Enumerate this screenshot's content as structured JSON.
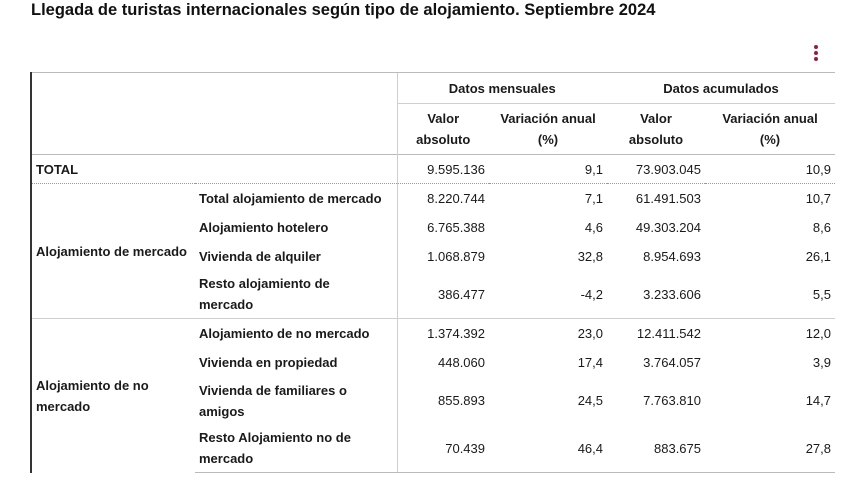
{
  "title": "Llegada de turistas internacionales según tipo de alojamiento. Septiembre 2024",
  "menu_icon": "kebab-menu-icon",
  "accent_color": "#9b1c3b",
  "headers": {
    "group_monthly": "Datos mensuales",
    "group_accumulated": "Datos acumulados",
    "col_value_line1": "Valor",
    "col_value_line2": "absoluto",
    "col_var_line1": "Variación anual",
    "col_var_line2": "(%)"
  },
  "total": {
    "label": "TOTAL",
    "monthly_value": "9.595.136",
    "monthly_var": "9,1",
    "acc_value": "73.903.045",
    "acc_var": "10,9"
  },
  "groups": [
    {
      "label": "Alojamiento de mercado",
      "rows": [
        {
          "label": "Total alojamiento de mercado",
          "monthly_value": "8.220.744",
          "monthly_var": "7,1",
          "acc_value": "61.491.503",
          "acc_var": "10,7"
        },
        {
          "label": "Alojamiento hotelero",
          "monthly_value": "6.765.388",
          "monthly_var": "4,6",
          "acc_value": "49.303.204",
          "acc_var": "8,6"
        },
        {
          "label": "Vivienda de alquiler",
          "monthly_value": "1.068.879",
          "monthly_var": "32,8",
          "acc_value": "8.954.693",
          "acc_var": "26,1"
        },
        {
          "label_line1": "Resto alojamiento de",
          "label_line2": "mercado",
          "monthly_value": "386.477",
          "monthly_var": "-4,2",
          "acc_value": "3.233.606",
          "acc_var": "5,5"
        }
      ]
    },
    {
      "label_line1": "Alojamiento de no",
      "label_line2": "mercado",
      "rows": [
        {
          "label": "Alojamiento de no mercado",
          "monthly_value": "1.374.392",
          "monthly_var": "23,0",
          "acc_value": "12.411.542",
          "acc_var": "12,0"
        },
        {
          "label": "Vivienda en propiedad",
          "monthly_value": "448.060",
          "monthly_var": "17,4",
          "acc_value": "3.764.057",
          "acc_var": "3,9"
        },
        {
          "label_line1": "Vivienda de familiares o",
          "label_line2": "amigos",
          "monthly_value": "855.893",
          "monthly_var": "24,5",
          "acc_value": "7.763.810",
          "acc_var": "14,7"
        },
        {
          "label_line1": "Resto Alojamiento no de",
          "label_line2": "mercado",
          "monthly_value": "70.439",
          "monthly_var": "46,4",
          "acc_value": "883.675",
          "acc_var": "27,8"
        }
      ]
    }
  ]
}
